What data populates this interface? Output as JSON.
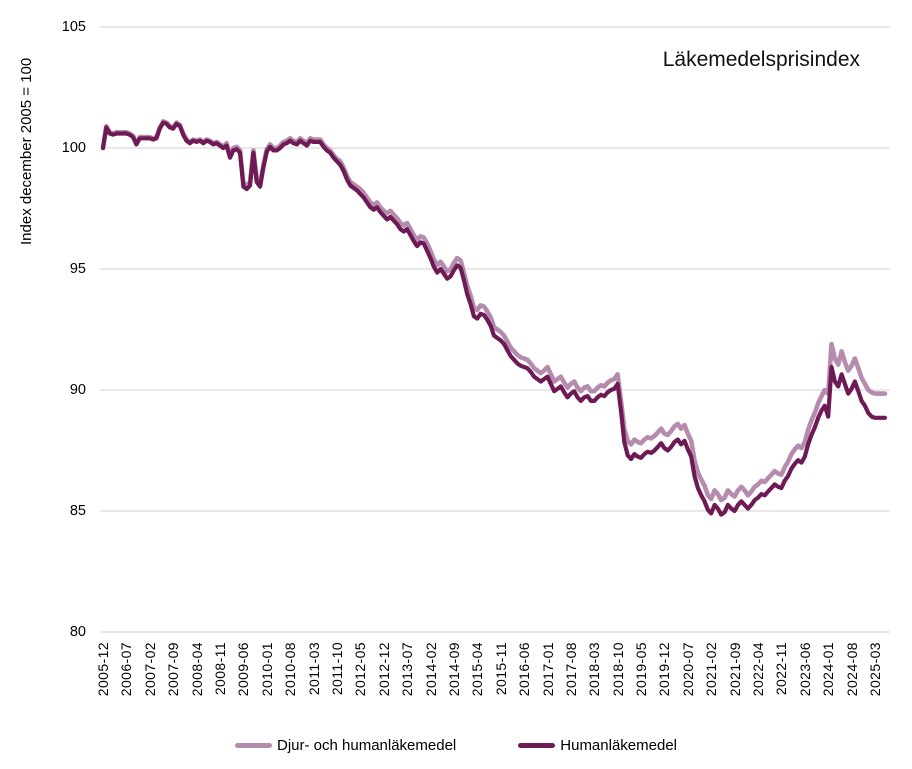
{
  "title": "Läkemedelsprisindex",
  "y_axis_title": "Index december 2005 = 100",
  "legend": [
    {
      "label": "Djur- och humanläkemedel",
      "color": "#b68cae"
    },
    {
      "label": "Humanläkemedel",
      "color": "#6e1b55"
    }
  ],
  "colors": {
    "gridline": "#d9d9d9",
    "text": "#000000",
    "title_text": "#111111"
  },
  "chart_data": {
    "type": "line",
    "title": "Läkemedelsprisindex",
    "xlabel": "",
    "ylabel": "Index december 2005 = 100",
    "ylim": [
      80,
      105
    ],
    "yticks": [
      80,
      85,
      90,
      95,
      100,
      105
    ],
    "grid": "horizontal-only",
    "legend_position": "bottom-center",
    "x_start": "2005-12",
    "x_end": "2025-06",
    "x_frequency": "monthly",
    "x_tick_interval_months": 7,
    "x_tick_labels": [
      "2005-12",
      "2006-07",
      "2007-02",
      "2007-09",
      "2008-04",
      "2008-11",
      "2009-06",
      "2010-01",
      "2010-08",
      "2011-03",
      "2011-10",
      "2012-05",
      "2012-12",
      "2013-07",
      "2014-02",
      "2014-09",
      "2015-04",
      "2015-11",
      "2016-06",
      "2017-01",
      "2017-08",
      "2018-03",
      "2018-10",
      "2019-05",
      "2019-12",
      "2020-07",
      "2021-02",
      "2021-09",
      "2022-04",
      "2022-11",
      "2023-06",
      "2024-01",
      "2024-08",
      "2025-03"
    ],
    "series": [
      {
        "name": "Djur- och humanläkemedel",
        "color": "#b68cae",
        "values": [
          100.0,
          100.9,
          100.65,
          100.6,
          100.65,
          100.65,
          100.65,
          100.65,
          100.6,
          100.5,
          100.2,
          100.45,
          100.45,
          100.45,
          100.45,
          100.4,
          100.45,
          100.85,
          101.1,
          101.05,
          100.9,
          100.85,
          101.05,
          100.95,
          100.6,
          100.35,
          100.25,
          100.35,
          100.3,
          100.35,
          100.25,
          100.35,
          100.3,
          100.2,
          100.25,
          100.15,
          100.05,
          100.2,
          99.7,
          100.0,
          100.05,
          99.9,
          98.55,
          98.45,
          98.6,
          99.9,
          98.75,
          98.55,
          99.3,
          99.95,
          100.15,
          100.0,
          100.0,
          100.1,
          100.25,
          100.3,
          100.4,
          100.3,
          100.25,
          100.4,
          100.3,
          100.2,
          100.4,
          100.35,
          100.35,
          100.35,
          100.15,
          100.0,
          99.9,
          99.7,
          99.55,
          99.45,
          99.2,
          98.85,
          98.6,
          98.5,
          98.4,
          98.3,
          98.15,
          97.95,
          97.75,
          97.65,
          97.75,
          97.55,
          97.4,
          97.3,
          97.4,
          97.25,
          97.1,
          96.9,
          96.8,
          96.9,
          96.65,
          96.4,
          96.2,
          96.35,
          96.3,
          96.05,
          95.75,
          95.4,
          95.15,
          95.3,
          95.1,
          94.9,
          95.0,
          95.25,
          95.45,
          95.35,
          94.85,
          94.3,
          93.9,
          93.4,
          93.3,
          93.5,
          93.45,
          93.25,
          93.0,
          92.6,
          92.5,
          92.4,
          92.25,
          92.0,
          91.75,
          91.6,
          91.45,
          91.35,
          91.3,
          91.25,
          91.1,
          90.9,
          90.8,
          90.7,
          90.8,
          90.95,
          90.65,
          90.35,
          90.45,
          90.55,
          90.3,
          90.1,
          90.25,
          90.35,
          90.1,
          89.95,
          90.1,
          90.15,
          89.95,
          89.95,
          90.1,
          90.2,
          90.15,
          90.3,
          90.4,
          90.45,
          90.65,
          89.55,
          88.4,
          87.9,
          87.75,
          87.95,
          87.85,
          87.8,
          87.95,
          88.05,
          88.0,
          88.1,
          88.25,
          88.4,
          88.2,
          88.15,
          88.3,
          88.5,
          88.6,
          88.4,
          88.55,
          88.2,
          87.9,
          87.1,
          86.6,
          86.3,
          86.05,
          85.65,
          85.5,
          85.85,
          85.7,
          85.45,
          85.55,
          85.85,
          85.7,
          85.6,
          85.85,
          86.0,
          85.85,
          85.65,
          85.8,
          86.0,
          86.1,
          86.25,
          86.2,
          86.35,
          86.5,
          86.65,
          86.55,
          86.5,
          86.8,
          87.05,
          87.35,
          87.55,
          87.7,
          87.6,
          87.85,
          88.35,
          88.75,
          89.05,
          89.45,
          89.75,
          90.0,
          89.85,
          91.9,
          91.3,
          91.05,
          91.6,
          91.15,
          90.8,
          91.0,
          91.3,
          90.9,
          90.5,
          90.25,
          90.0,
          89.9,
          89.85,
          89.85,
          89.85,
          89.85
        ]
      },
      {
        "name": "Humanläkemedel",
        "color": "#6e1b55",
        "values": [
          100.0,
          100.85,
          100.6,
          100.55,
          100.6,
          100.6,
          100.6,
          100.6,
          100.55,
          100.45,
          100.15,
          100.4,
          100.4,
          100.4,
          100.4,
          100.35,
          100.4,
          100.8,
          101.05,
          101.0,
          100.85,
          100.8,
          101.0,
          100.9,
          100.55,
          100.3,
          100.2,
          100.3,
          100.25,
          100.3,
          100.2,
          100.3,
          100.25,
          100.15,
          100.2,
          100.1,
          100.0,
          100.1,
          99.6,
          99.9,
          99.95,
          99.8,
          98.4,
          98.3,
          98.45,
          99.8,
          98.6,
          98.4,
          99.2,
          99.85,
          100.05,
          99.9,
          99.9,
          100.0,
          100.15,
          100.2,
          100.3,
          100.2,
          100.15,
          100.3,
          100.2,
          100.1,
          100.3,
          100.25,
          100.25,
          100.25,
          100.05,
          99.9,
          99.8,
          99.6,
          99.45,
          99.3,
          99.05,
          98.7,
          98.45,
          98.35,
          98.25,
          98.1,
          97.95,
          97.75,
          97.55,
          97.45,
          97.55,
          97.35,
          97.2,
          97.05,
          97.15,
          97.0,
          96.85,
          96.65,
          96.55,
          96.65,
          96.4,
          96.15,
          95.95,
          96.1,
          96.05,
          95.75,
          95.45,
          95.1,
          94.85,
          95.0,
          94.8,
          94.6,
          94.7,
          94.95,
          95.15,
          95.05,
          94.55,
          93.95,
          93.55,
          93.05,
          92.95,
          93.15,
          93.1,
          92.9,
          92.65,
          92.25,
          92.15,
          92.05,
          91.9,
          91.65,
          91.4,
          91.25,
          91.1,
          91.0,
          90.95,
          90.9,
          90.75,
          90.55,
          90.45,
          90.35,
          90.45,
          90.55,
          90.25,
          89.95,
          90.05,
          90.15,
          89.9,
          89.7,
          89.85,
          89.95,
          89.7,
          89.55,
          89.7,
          89.75,
          89.55,
          89.55,
          89.7,
          89.8,
          89.75,
          89.9,
          90.0,
          90.05,
          90.25,
          89.15,
          87.85,
          87.3,
          87.15,
          87.35,
          87.25,
          87.2,
          87.35,
          87.45,
          87.4,
          87.5,
          87.65,
          87.8,
          87.6,
          87.5,
          87.65,
          87.85,
          87.95,
          87.75,
          87.9,
          87.55,
          87.25,
          86.45,
          85.95,
          85.65,
          85.4,
          85.05,
          84.9,
          85.25,
          85.1,
          84.85,
          84.95,
          85.25,
          85.1,
          85.0,
          85.25,
          85.4,
          85.25,
          85.1,
          85.25,
          85.45,
          85.55,
          85.7,
          85.65,
          85.8,
          85.95,
          86.1,
          86.0,
          85.95,
          86.25,
          86.45,
          86.75,
          86.95,
          87.1,
          87.0,
          87.25,
          87.75,
          88.15,
          88.45,
          88.85,
          89.15,
          89.35,
          88.9,
          90.95,
          90.35,
          90.15,
          90.65,
          90.25,
          89.85,
          90.05,
          90.35,
          89.95,
          89.55,
          89.35,
          89.05,
          88.9,
          88.85,
          88.85,
          88.85,
          88.85
        ]
      }
    ]
  }
}
